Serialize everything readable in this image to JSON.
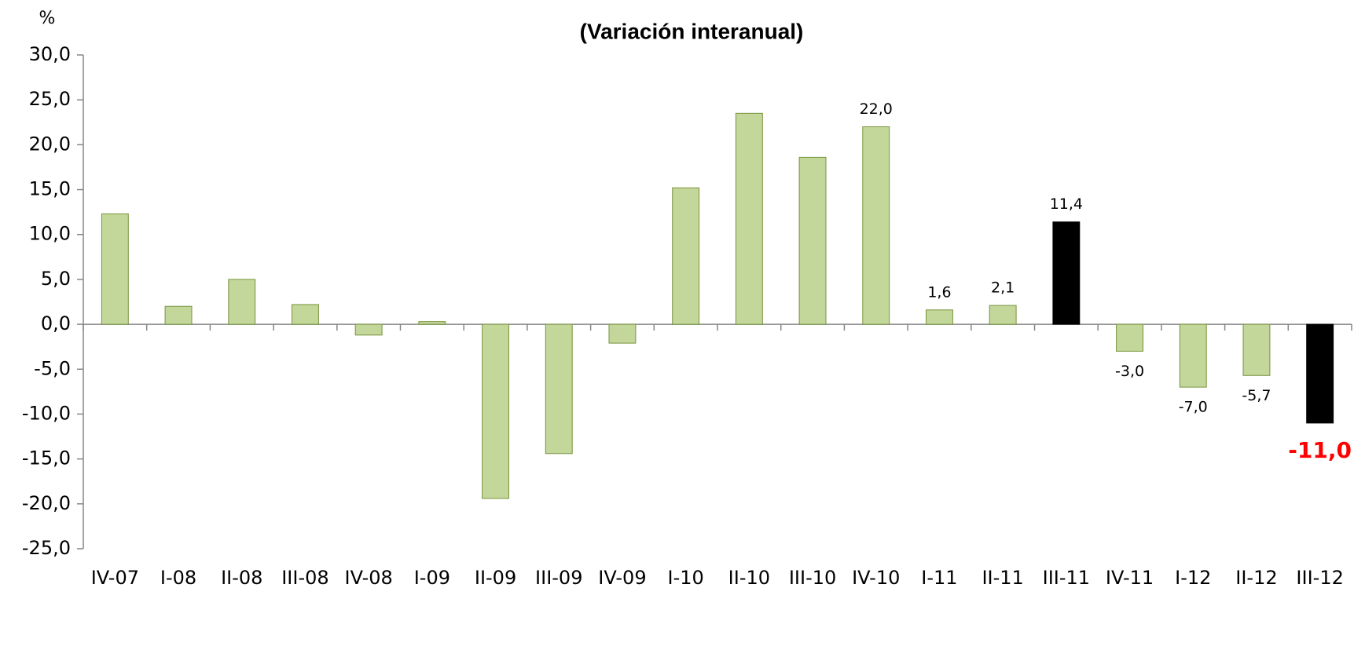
{
  "chart_data": {
    "type": "bar",
    "title": "(Variación interanual)",
    "y_label": "%",
    "categories": [
      "IV-07",
      "I-08",
      "II-08",
      "III-08",
      "IV-08",
      "I-09",
      "II-09",
      "III-09",
      "IV-09",
      "I-10",
      "II-10",
      "III-10",
      "IV-10",
      "I-11",
      "II-11",
      "III-11",
      "IV-11",
      "I-12",
      "II-12",
      "III-12"
    ],
    "values": [
      12.3,
      2.0,
      5.0,
      2.2,
      -1.2,
      0.3,
      -19.4,
      -14.4,
      -2.1,
      15.2,
      23.5,
      18.6,
      22.0,
      1.6,
      2.1,
      11.4,
      -3.0,
      -7.0,
      -5.7,
      -11.0
    ],
    "value_labels": [
      null,
      null,
      null,
      null,
      null,
      null,
      null,
      null,
      null,
      null,
      null,
      null,
      "22,0",
      "1,6",
      "2,1",
      "11,4",
      "-3,0",
      "-7,0",
      "-5,7",
      "-11,0"
    ],
    "value_label_colors": [
      null,
      null,
      null,
      null,
      null,
      null,
      null,
      null,
      null,
      null,
      null,
      null,
      null,
      null,
      null,
      null,
      null,
      null,
      null,
      "#ff0000"
    ],
    "colors": [
      "#c4d79b",
      "#c4d79b",
      "#c4d79b",
      "#c4d79b",
      "#c4d79b",
      "#c4d79b",
      "#c4d79b",
      "#c4d79b",
      "#c4d79b",
      "#c4d79b",
      "#c4d79b",
      "#c4d79b",
      "#c4d79b",
      "#c4d79b",
      "#c4d79b",
      "#000000",
      "#c4d79b",
      "#c4d79b",
      "#c4d79b",
      "#000000"
    ],
    "ylim": [
      -25,
      30
    ],
    "yticks": [
      {
        "value": -25,
        "label": "-25,0"
      },
      {
        "value": -20,
        "label": "-20,0"
      },
      {
        "value": -15,
        "label": "-15,0"
      },
      {
        "value": -10,
        "label": "-10,0"
      },
      {
        "value": -5,
        "label": "-5,0"
      },
      {
        "value": 0,
        "label": "0,0"
      },
      {
        "value": 5,
        "label": "5,0"
      },
      {
        "value": 10,
        "label": "10,0"
      },
      {
        "value": 15,
        "label": "15,0"
      },
      {
        "value": 20,
        "label": "20,0"
      },
      {
        "value": 25,
        "label": "25,0"
      },
      {
        "value": 30,
        "label": "30,0"
      }
    ],
    "grid": false
  }
}
